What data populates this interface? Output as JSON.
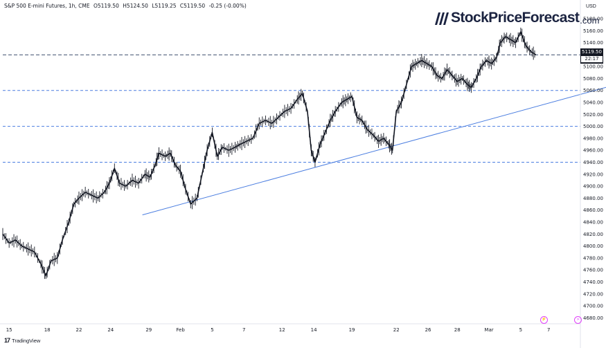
{
  "header": {
    "symbol": "S&P 500 E-mini Futures, 1h, CME",
    "open": "O5119.50",
    "high": "H5124.50",
    "low": "L5119.25",
    "close": "C5119.50",
    "change": "-0.25 (-0.00%)"
  },
  "logo": {
    "text": "StockPriceForecast",
    "domain": ".com"
  },
  "footer": {
    "brand": "TradingView"
  },
  "price_axis": {
    "currency": "USD"
  },
  "last_price": {
    "value": "5119.50",
    "countdown": "22:17"
  },
  "colors": {
    "candle": "#131722",
    "trendline": "#4a7de0",
    "level_line": "#4a7de0",
    "last_price_line": "#3a4a6a",
    "accent": "#e040fb"
  },
  "icons": [
    "tradingview-logo-icon",
    "lightning-icon",
    "forward-arrow-icon"
  ],
  "chart_data": {
    "type": "line",
    "title": "",
    "xlabel": "",
    "ylabel": "",
    "ylim": [
      4670,
      5195
    ],
    "y_ticks": [
      5180,
      5160,
      5140,
      5120,
      5100,
      5080,
      5060,
      5040,
      5020,
      5000,
      4980,
      4960,
      4940,
      4920,
      4900,
      4880,
      4860,
      4840,
      4820,
      4800,
      4780,
      4760,
      4740,
      4720,
      4700,
      4680
    ],
    "x_tick_labels": [
      {
        "label": "15",
        "xi": 0.5
      },
      {
        "label": "18",
        "xi": 3.5
      },
      {
        "label": "22",
        "xi": 6.0
      },
      {
        "label": "24",
        "xi": 8.5
      },
      {
        "label": "29",
        "xi": 11.5
      },
      {
        "label": "Feb",
        "xi": 14.0
      },
      {
        "label": "5",
        "xi": 16.5
      },
      {
        "label": "7",
        "xi": 19.0
      },
      {
        "label": "12",
        "xi": 22.0
      },
      {
        "label": "14",
        "xi": 24.5
      },
      {
        "label": "19",
        "xi": 27.5
      },
      {
        "label": "22",
        "xi": 31.0
      },
      {
        "label": "26",
        "xi": 33.5
      },
      {
        "label": "28",
        "xi": 35.8
      },
      {
        "label": "Mar",
        "xi": 38.3
      },
      {
        "label": "5",
        "xi": 40.8
      },
      {
        "label": "7",
        "xi": 43.0
      }
    ],
    "series": [
      {
        "values": [
          [
            0.0,
            4820
          ],
          [
            0.5,
            4805
          ],
          [
            1.0,
            4810
          ],
          [
            1.5,
            4800
          ],
          [
            2.0,
            4795
          ],
          [
            2.5,
            4790
          ],
          [
            3.0,
            4770
          ],
          [
            3.4,
            4750
          ],
          [
            3.8,
            4775
          ],
          [
            4.3,
            4780
          ],
          [
            4.7,
            4810
          ],
          [
            5.2,
            4840
          ],
          [
            5.6,
            4870
          ],
          [
            6.0,
            4880
          ],
          [
            6.5,
            4890
          ],
          [
            7.0,
            4885
          ],
          [
            7.5,
            4880
          ],
          [
            8.0,
            4890
          ],
          [
            8.4,
            4905
          ],
          [
            8.8,
            4930
          ],
          [
            9.2,
            4905
          ],
          [
            9.7,
            4900
          ],
          [
            10.2,
            4910
          ],
          [
            10.7,
            4905
          ],
          [
            11.2,
            4920
          ],
          [
            11.6,
            4915
          ],
          [
            12.0,
            4935
          ],
          [
            12.3,
            4955
          ],
          [
            12.8,
            4950
          ],
          [
            13.2,
            4955
          ],
          [
            13.6,
            4935
          ],
          [
            14.0,
            4925
          ],
          [
            14.4,
            4895
          ],
          [
            14.8,
            4870
          ],
          [
            15.3,
            4880
          ],
          [
            15.7,
            4920
          ],
          [
            16.1,
            4960
          ],
          [
            16.5,
            4990
          ],
          [
            16.9,
            4950
          ],
          [
            17.3,
            4965
          ],
          [
            17.8,
            4960
          ],
          [
            18.3,
            4965
          ],
          [
            18.7,
            4970
          ],
          [
            19.2,
            4975
          ],
          [
            19.7,
            4980
          ],
          [
            20.2,
            5005
          ],
          [
            20.7,
            5010
          ],
          [
            21.2,
            5005
          ],
          [
            21.7,
            5015
          ],
          [
            22.2,
            5025
          ],
          [
            22.7,
            5030
          ],
          [
            23.2,
            5045
          ],
          [
            23.6,
            5055
          ],
          [
            24.0,
            5025
          ],
          [
            24.3,
            4960
          ],
          [
            24.6,
            4940
          ],
          [
            25.0,
            4970
          ],
          [
            25.4,
            4990
          ],
          [
            25.8,
            5010
          ],
          [
            26.2,
            5025
          ],
          [
            26.7,
            5040
          ],
          [
            27.1,
            5045
          ],
          [
            27.5,
            5050
          ],
          [
            27.9,
            5015
          ],
          [
            28.3,
            5010
          ],
          [
            28.7,
            4995
          ],
          [
            29.2,
            4985
          ],
          [
            29.6,
            4975
          ],
          [
            30.0,
            4980
          ],
          [
            30.4,
            4970
          ],
          [
            30.7,
            4960
          ],
          [
            31.0,
            5025
          ],
          [
            31.4,
            5040
          ],
          [
            31.8,
            5070
          ],
          [
            32.2,
            5100
          ],
          [
            32.6,
            5105
          ],
          [
            33.0,
            5110
          ],
          [
            33.4,
            5105
          ],
          [
            33.8,
            5100
          ],
          [
            34.2,
            5085
          ],
          [
            34.6,
            5080
          ],
          [
            35.0,
            5095
          ],
          [
            35.4,
            5085
          ],
          [
            35.8,
            5075
          ],
          [
            36.2,
            5080
          ],
          [
            36.6,
            5070
          ],
          [
            36.9,
            5065
          ],
          [
            37.3,
            5080
          ],
          [
            37.7,
            5100
          ],
          [
            38.1,
            5110
          ],
          [
            38.5,
            5105
          ],
          [
            38.9,
            5115
          ],
          [
            39.2,
            5140
          ],
          [
            39.6,
            5150
          ],
          [
            40.0,
            5145
          ],
          [
            40.4,
            5140
          ],
          [
            40.8,
            5158
          ],
          [
            41.2,
            5135
          ],
          [
            41.6,
            5125
          ],
          [
            42.0,
            5119.5
          ]
        ]
      }
    ],
    "horizontal_levels": [
      5060,
      5000,
      4940
    ],
    "last_price_level": 5119.5,
    "trendline": {
      "from": [
        11.0,
        4852
      ],
      "to": [
        48.0,
        5068
      ]
    }
  }
}
